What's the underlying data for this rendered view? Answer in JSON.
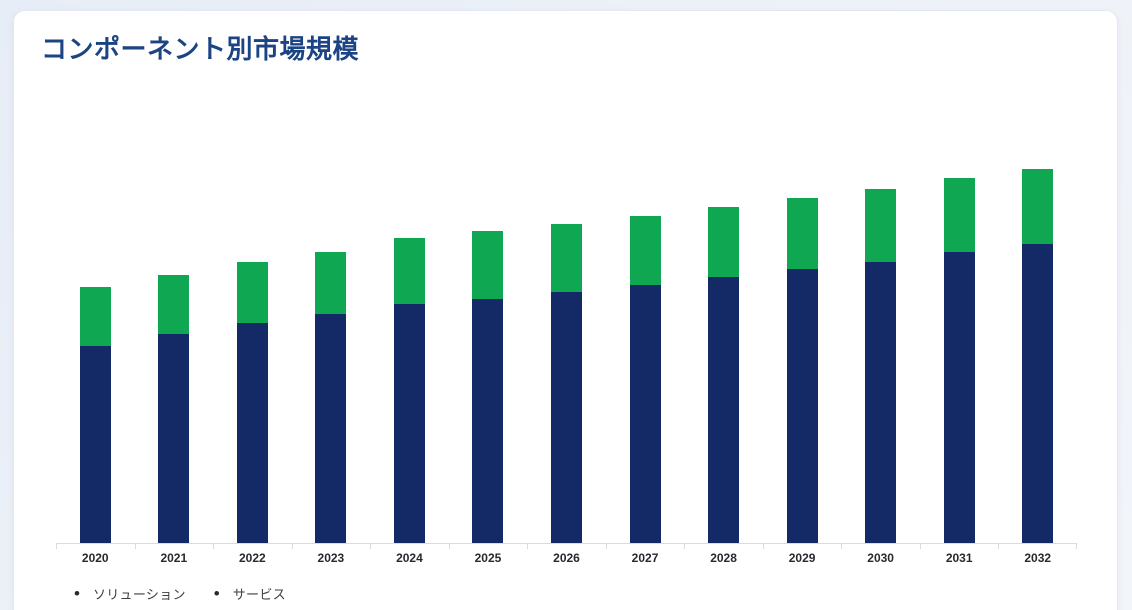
{
  "card": {
    "title": "コンポーネント別市場規模"
  },
  "colors": {
    "page_background": "#eef2f8",
    "card_background": "#ffffff",
    "card_border": "#e4e9f1",
    "title_text": "#1c4383",
    "axis_line": "#d8dce1",
    "year_label_text": "#26292e",
    "legend_text": "#3a3f45",
    "legend_bullet": "#272b30",
    "series_solution": "#132a66",
    "series_service": "#10a753"
  },
  "chart_data": {
    "type": "bar",
    "stacked": true,
    "title": "コンポーネント別市場規模",
    "xlabel": "",
    "ylabel": "",
    "y_axis_visible": false,
    "gridlines": false,
    "legend_position": "bottom",
    "categories": [
      "2020",
      "2021",
      "2022",
      "2023",
      "2024",
      "2025",
      "2026",
      "2027",
      "2028",
      "2029",
      "2030",
      "2031",
      "2032"
    ],
    "value_unit": "px (relative bar heights; chart displays no numeric axis or data labels)",
    "series": [
      {
        "name": "ソリューション",
        "color": "#132a66",
        "values": [
          197,
          209,
          220,
          229,
          239,
          244,
          251,
          258,
          266,
          274,
          281,
          291,
          299
        ]
      },
      {
        "name": "サービス",
        "color": "#10a753",
        "values": [
          59,
          59,
          61,
          62,
          66,
          68,
          68,
          69,
          70,
          71,
          73,
          74,
          75
        ]
      }
    ]
  },
  "legend": {
    "bullet": "•",
    "items": [
      {
        "label": "ソリューション"
      },
      {
        "label": "サービス"
      }
    ]
  }
}
